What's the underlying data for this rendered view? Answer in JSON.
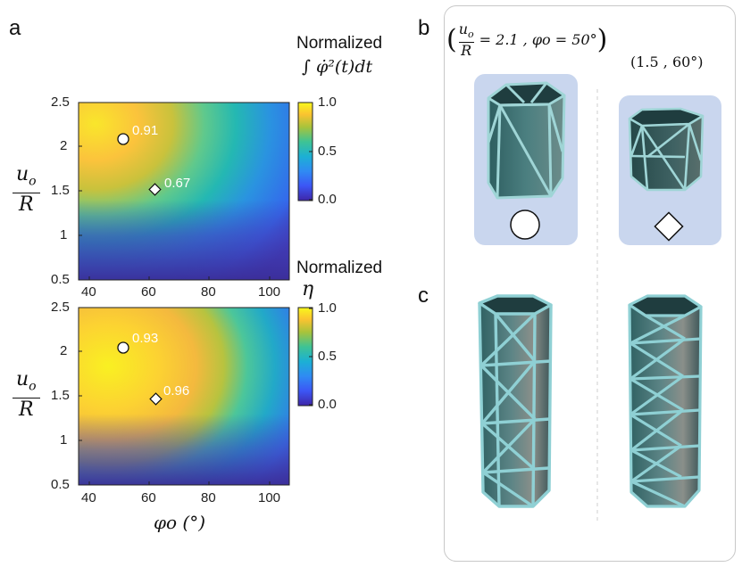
{
  "labels": {
    "a": "a",
    "b": "b",
    "c": "c"
  },
  "heatmap_top": {
    "colorbar_title": "Normalized",
    "colorbar_formula": "∫ φ̇²(t)dt",
    "colorbar_ticks": [
      "1.0",
      "0.5",
      "0.0"
    ],
    "y_label_num": "u",
    "y_label_num_sub": "o",
    "y_label_den": "R",
    "y_ticks": [
      "2.5",
      "2",
      "1.5",
      "1",
      "0.5"
    ],
    "markers": [
      {
        "shape": "circle",
        "phi": 50,
        "u_over_R": 2.05,
        "label": "0.91"
      },
      {
        "shape": "diamond",
        "phi": 61,
        "u_over_R": 1.47,
        "label": "0.67"
      }
    ]
  },
  "heatmap_bottom": {
    "colorbar_title": "Normalized",
    "colorbar_symbol": "η",
    "colorbar_ticks": [
      "1.0",
      "0.5",
      "0.0"
    ],
    "y_label_num": "u",
    "y_label_num_sub": "o",
    "y_label_den": "R",
    "y_ticks": [
      "2.5",
      "2",
      "1.5",
      "1",
      "0.5"
    ],
    "x_ticks": [
      "40",
      "60",
      "80",
      "100"
    ],
    "x_label": "φo (°)",
    "markers": [
      {
        "shape": "circle",
        "phi": 50,
        "u_over_R": 2.05,
        "label": "0.93"
      },
      {
        "shape": "diamond",
        "phi": 61,
        "u_over_R": 1.47,
        "label": "0.96"
      }
    ]
  },
  "chart_data": [
    {
      "type": "heatmap",
      "title": "Normalized ∫ φ̇²(t)dt",
      "xlabel": "φo (°)",
      "ylabel": "uo/R",
      "xlim": [
        35,
        105
      ],
      "ylim": [
        0.5,
        2.5
      ],
      "clim": [
        0.0,
        1.0
      ],
      "annotations": [
        {
          "x": 50,
          "y": 2.05,
          "value": 0.91,
          "marker": "circle"
        },
        {
          "x": 61,
          "y": 1.47,
          "value": 0.67,
          "marker": "diamond"
        }
      ]
    },
    {
      "type": "heatmap",
      "title": "Normalized η",
      "xlabel": "φo (°)",
      "ylabel": "uo/R",
      "xlim": [
        35,
        105
      ],
      "ylim": [
        0.5,
        2.5
      ],
      "clim": [
        0.0,
        1.0
      ],
      "annotations": [
        {
          "x": 50,
          "y": 2.05,
          "value": 0.93,
          "marker": "circle"
        },
        {
          "x": 61,
          "y": 1.47,
          "value": 0.96,
          "marker": "diamond"
        }
      ]
    }
  ],
  "panel_b": {
    "left_param_u": "u",
    "left_param_sub": "o",
    "left_param_R": "R",
    "left_param_rest": "= 2.1 , φo = 50°",
    "right_param": "(1.5 , 60°)"
  },
  "colors": {
    "tile_bg": "#c9d6ee",
    "lattice": "#8fd0d4",
    "panel_dark": "#1f3d3f"
  }
}
